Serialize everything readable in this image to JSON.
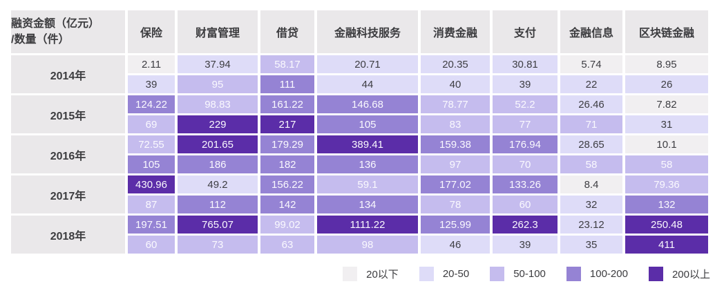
{
  "chart_data": {
    "type": "heatmap",
    "corner": {
      "line1": "融资金额（亿元）",
      "line2": "/数量（件）"
    },
    "categories": [
      "保险",
      "财富管理",
      "借贷",
      "金融科技服务",
      "消费金融",
      "支付",
      "金融信息",
      "区块链金融"
    ],
    "years": [
      "2014年",
      "2015年",
      "2016年",
      "2017年",
      "2018年"
    ],
    "rows_per_year": [
      "融资金额",
      "数量"
    ],
    "amounts": [
      [
        2.11,
        37.94,
        58.17,
        20.71,
        20.35,
        30.81,
        5.74,
        8.95
      ],
      [
        124.22,
        98.83,
        161.22,
        146.68,
        78.77,
        52.2,
        26.46,
        7.82
      ],
      [
        72.55,
        201.65,
        179.29,
        389.41,
        159.38,
        176.94,
        28.65,
        10.1
      ],
      [
        430.96,
        49.2,
        156.22,
        59.1,
        177.02,
        133.26,
        8.4,
        79.36
      ],
      [
        197.51,
        765.07,
        99.02,
        1111.22,
        125.99,
        262.3,
        23.12,
        250.48
      ]
    ],
    "counts": [
      [
        39,
        95,
        111,
        44,
        40,
        39,
        22,
        26
      ],
      [
        69,
        229,
        217,
        105,
        83,
        77,
        71,
        31
      ],
      [
        105,
        186,
        182,
        136,
        97,
        70,
        58,
        58
      ],
      [
        87,
        112,
        142,
        134,
        78,
        60,
        32,
        132
      ],
      [
        60,
        73,
        63,
        98,
        46,
        39,
        35,
        411
      ]
    ],
    "thresholds": [
      20,
      50,
      100,
      200
    ],
    "legend": [
      {
        "label": "20以下",
        "color": "#f1eff1"
      },
      {
        "label": "20-50",
        "color": "#dedcf8"
      },
      {
        "label": "50-100",
        "color": "#c5bcee"
      },
      {
        "label": "100-200",
        "color": "#9583d4"
      },
      {
        "label": "200以上",
        "color": "#5b2da8"
      }
    ],
    "header_bg": "#eae8ea",
    "dark_text": "#3d3d42",
    "light_text": "#faf9fe"
  }
}
